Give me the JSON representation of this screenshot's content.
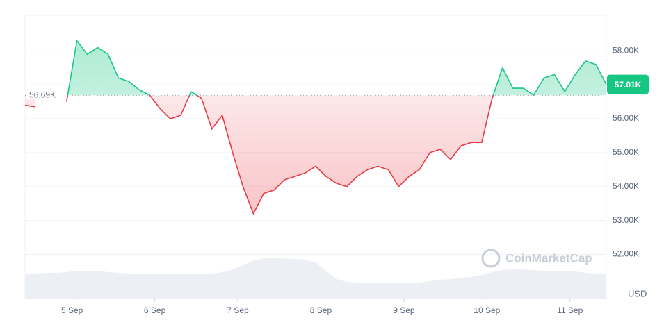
{
  "chart_data": {
    "type": "baseline-line",
    "watermark": "CoinMarketCap",
    "currency": "USD",
    "baseline": {
      "value": 56.69,
      "label": "56.69K"
    },
    "current": {
      "value": 57.01,
      "label": "57.01K"
    },
    "up_color": "#16c784",
    "down_color": "#ea3943",
    "values": [
      56.4,
      56.35,
      null,
      null,
      56.5,
      58.3,
      57.9,
      58.1,
      57.9,
      57.2,
      57.1,
      56.85,
      56.7,
      56.3,
      56.0,
      56.1,
      56.8,
      56.6,
      55.7,
      56.1,
      55.0,
      54.0,
      53.2,
      53.8,
      53.9,
      54.2,
      54.3,
      54.4,
      54.6,
      54.3,
      54.1,
      54.0,
      54.3,
      54.5,
      54.6,
      54.5,
      54.0,
      54.3,
      54.5,
      55.0,
      55.1,
      54.8,
      55.2,
      55.3,
      55.3,
      56.6,
      57.5,
      56.9,
      56.9,
      56.7,
      57.2,
      57.3,
      56.8,
      57.3,
      57.7,
      57.6,
      57.01
    ],
    "volume": [
      36,
      36,
      37,
      37,
      38,
      40,
      40,
      40,
      38,
      37,
      36,
      36,
      36,
      35,
      35,
      35,
      35,
      36,
      36,
      38,
      42,
      48,
      55,
      58,
      58,
      58,
      57,
      56,
      52,
      40,
      28,
      24,
      23,
      23,
      23,
      22,
      22,
      22,
      23,
      25,
      27,
      28,
      30,
      31,
      34,
      38,
      41,
      42,
      42,
      41,
      40,
      40,
      40,
      39,
      37,
      36,
      36
    ],
    "xlim": [
      0,
      56
    ],
    "xticks": [
      {
        "value": 4.53,
        "label": "5 Sep"
      },
      {
        "value": 12.5,
        "label": "6 Sep"
      },
      {
        "value": 20.5,
        "label": "7 Sep"
      },
      {
        "value": 28.5,
        "label": "8 Sep"
      },
      {
        "value": 36.5,
        "label": "9 Sep"
      },
      {
        "value": 44.5,
        "label": "10 Sep"
      },
      {
        "value": 52.5,
        "label": "11 Sep"
      }
    ],
    "ylim": [
      50.7,
      59.05
    ],
    "yticks": [
      {
        "value": 52,
        "label": "52.00K"
      },
      {
        "value": 53,
        "label": "53.00K"
      },
      {
        "value": 54,
        "label": "54.00K"
      },
      {
        "value": 55,
        "label": "55.00K"
      },
      {
        "value": 56,
        "label": "56.00K"
      },
      {
        "value": 57,
        "label": "57.00K"
      },
      {
        "value": 58,
        "label": "58.00K"
      }
    ],
    "y2lim": [
      0,
      100
    ],
    "grid": true
  }
}
